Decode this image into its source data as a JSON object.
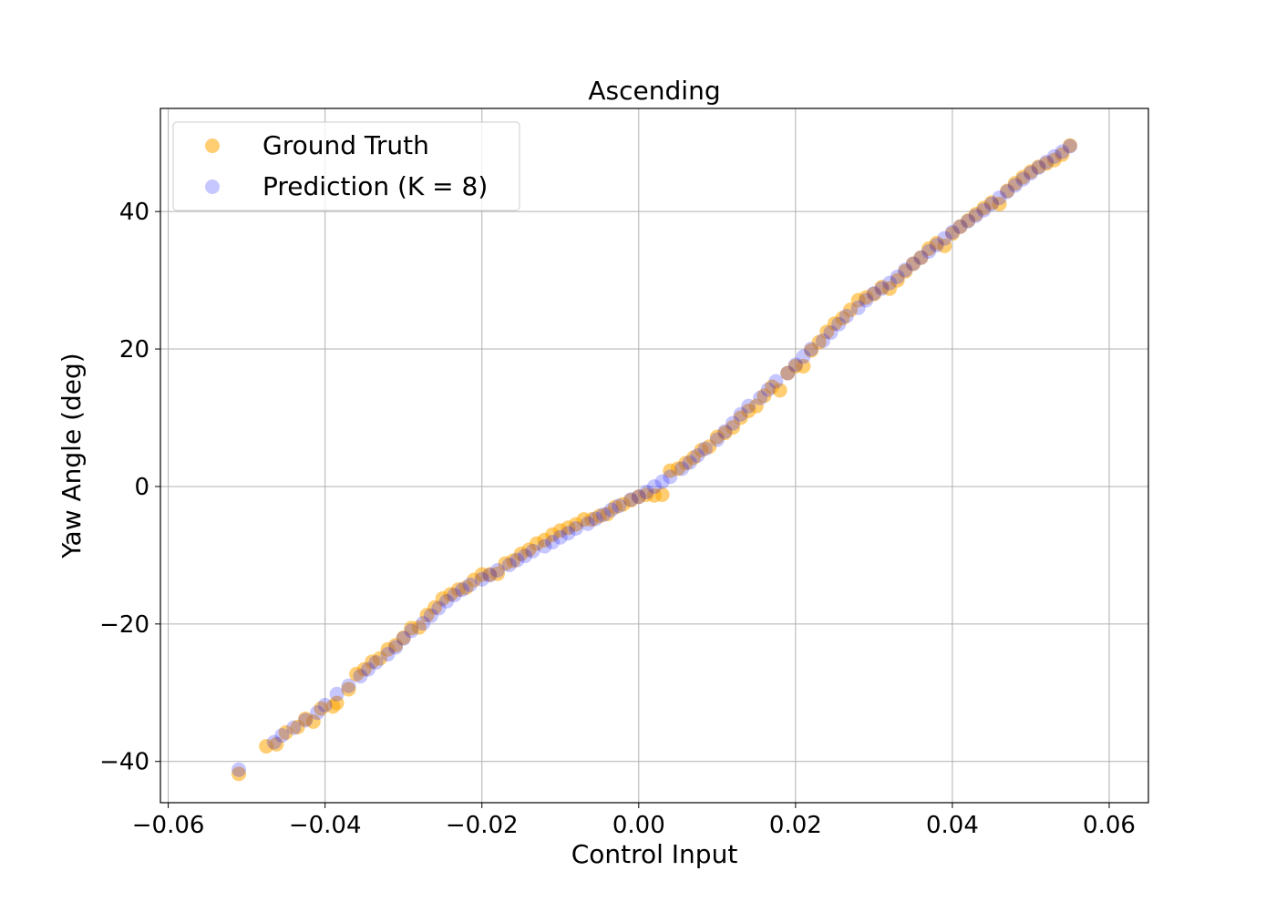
{
  "chart_data": {
    "type": "scatter",
    "title": "Ascending",
    "xlabel": "Control Input",
    "ylabel": "Yaw Angle (deg)",
    "xlim": [
      -0.061,
      0.065
    ],
    "ylim": [
      -46,
      55
    ],
    "xticks": [
      -0.06,
      -0.04,
      -0.02,
      0.0,
      0.02,
      0.04,
      0.06
    ],
    "xtick_labels": [
      "−0.06",
      "−0.04",
      "−0.02",
      "0.00",
      "0.02",
      "0.04",
      "0.06"
    ],
    "yticks": [
      -40,
      -20,
      0,
      20,
      40
    ],
    "ytick_labels": [
      "−40",
      "−20",
      "0",
      "20",
      "40"
    ],
    "grid": true,
    "legend_position": "upper-left",
    "series": [
      {
        "name": "Ground Truth",
        "color": "#FFA500",
        "opacity": 0.55,
        "points": [
          [
            -0.051,
            -41.8
          ],
          [
            -0.0475,
            -37.8
          ],
          [
            -0.0462,
            -37.5
          ],
          [
            -0.045,
            -35.8
          ],
          [
            -0.0435,
            -35.0
          ],
          [
            -0.0425,
            -33.8
          ],
          [
            -0.0415,
            -34.2
          ],
          [
            -0.0405,
            -32.3
          ],
          [
            -0.039,
            -32.0
          ],
          [
            -0.0385,
            -31.5
          ],
          [
            -0.037,
            -29.5
          ],
          [
            -0.036,
            -27.3
          ],
          [
            -0.035,
            -26.6
          ],
          [
            -0.034,
            -25.5
          ],
          [
            -0.033,
            -25.0
          ],
          [
            -0.032,
            -23.7
          ],
          [
            -0.031,
            -23.1
          ],
          [
            -0.03,
            -22.0
          ],
          [
            -0.029,
            -20.6
          ],
          [
            -0.028,
            -20.5
          ],
          [
            -0.027,
            -18.7
          ],
          [
            -0.026,
            -17.6
          ],
          [
            -0.025,
            -16.3
          ],
          [
            -0.024,
            -15.7
          ],
          [
            -0.023,
            -15.0
          ],
          [
            -0.022,
            -14.7
          ],
          [
            -0.021,
            -13.6
          ],
          [
            -0.02,
            -12.8
          ],
          [
            -0.019,
            -12.8
          ],
          [
            -0.018,
            -12.7
          ],
          [
            -0.017,
            -11.2
          ],
          [
            -0.016,
            -10.8
          ],
          [
            -0.015,
            -9.8
          ],
          [
            -0.014,
            -9.2
          ],
          [
            -0.013,
            -8.3
          ],
          [
            -0.012,
            -7.8
          ],
          [
            -0.011,
            -7.0
          ],
          [
            -0.01,
            -6.4
          ],
          [
            -0.009,
            -6.0
          ],
          [
            -0.008,
            -5.5
          ],
          [
            -0.007,
            -4.8
          ],
          [
            -0.006,
            -4.8
          ],
          [
            -0.005,
            -4.3
          ],
          [
            -0.004,
            -4.0
          ],
          [
            -0.003,
            -3.0
          ],
          [
            -0.002,
            -2.6
          ],
          [
            -0.001,
            -2.0
          ],
          [
            0.0,
            -1.5
          ],
          [
            0.001,
            -1.2
          ],
          [
            0.002,
            -1.3
          ],
          [
            0.003,
            -1.2
          ],
          [
            0.004,
            2.3
          ],
          [
            0.005,
            2.6
          ],
          [
            0.006,
            3.4
          ],
          [
            0.007,
            4.2
          ],
          [
            0.008,
            5.3
          ],
          [
            0.009,
            5.8
          ],
          [
            0.01,
            7.2
          ],
          [
            0.011,
            7.8
          ],
          [
            0.012,
            8.6
          ],
          [
            0.013,
            10.0
          ],
          [
            0.014,
            11.0
          ],
          [
            0.015,
            11.7
          ],
          [
            0.016,
            13.2
          ],
          [
            0.017,
            14.5
          ],
          [
            0.018,
            14.0
          ],
          [
            0.019,
            16.5
          ],
          [
            0.02,
            17.5
          ],
          [
            0.021,
            17.5
          ],
          [
            0.022,
            19.8
          ],
          [
            0.023,
            21.0
          ],
          [
            0.024,
            22.5
          ],
          [
            0.025,
            23.7
          ],
          [
            0.026,
            24.5
          ],
          [
            0.027,
            25.7
          ],
          [
            0.028,
            27.1
          ],
          [
            0.029,
            27.5
          ],
          [
            0.03,
            28.0
          ],
          [
            0.031,
            29.0
          ],
          [
            0.032,
            28.8
          ],
          [
            0.033,
            30.0
          ],
          [
            0.034,
            31.3
          ],
          [
            0.035,
            32.4
          ],
          [
            0.036,
            33.3
          ],
          [
            0.037,
            34.6
          ],
          [
            0.038,
            35.4
          ],
          [
            0.039,
            35.0
          ],
          [
            0.04,
            36.8
          ],
          [
            0.041,
            37.8
          ],
          [
            0.042,
            38.7
          ],
          [
            0.043,
            39.6
          ],
          [
            0.044,
            40.5
          ],
          [
            0.045,
            41.3
          ],
          [
            0.046,
            41.1
          ],
          [
            0.047,
            43.0
          ],
          [
            0.048,
            44.1
          ],
          [
            0.049,
            45.0
          ],
          [
            0.05,
            45.8
          ],
          [
            0.051,
            46.5
          ],
          [
            0.052,
            47.0
          ],
          [
            0.053,
            47.5
          ],
          [
            0.054,
            48.3
          ],
          [
            0.055,
            49.6
          ]
        ]
      },
      {
        "name": "Prediction (K = 8)",
        "color": "#0000FF",
        "opacity": 0.22,
        "points": [
          [
            -0.051,
            -41.2
          ],
          [
            -0.0465,
            -37.2
          ],
          [
            -0.0455,
            -36.2
          ],
          [
            -0.044,
            -35.1
          ],
          [
            -0.0425,
            -34.0
          ],
          [
            -0.041,
            -32.9
          ],
          [
            -0.04,
            -31.8
          ],
          [
            -0.0385,
            -30.2
          ],
          [
            -0.037,
            -29.0
          ],
          [
            -0.0355,
            -27.6
          ],
          [
            -0.0345,
            -26.6
          ],
          [
            -0.0335,
            -25.6
          ],
          [
            -0.032,
            -24.4
          ],
          [
            -0.031,
            -23.4
          ],
          [
            -0.03,
            -22.1
          ],
          [
            -0.029,
            -21.0
          ],
          [
            -0.0275,
            -19.9
          ],
          [
            -0.0265,
            -18.8
          ],
          [
            -0.0255,
            -17.7
          ],
          [
            -0.0245,
            -16.7
          ],
          [
            -0.0235,
            -15.8
          ],
          [
            -0.0225,
            -15.0
          ],
          [
            -0.0215,
            -14.3
          ],
          [
            -0.02,
            -13.5
          ],
          [
            -0.019,
            -12.9
          ],
          [
            -0.018,
            -12.2
          ],
          [
            -0.0165,
            -11.4
          ],
          [
            -0.0155,
            -10.7
          ],
          [
            -0.0145,
            -10.1
          ],
          [
            -0.0135,
            -9.4
          ],
          [
            -0.012,
            -8.7
          ],
          [
            -0.011,
            -8.1
          ],
          [
            -0.01,
            -7.4
          ],
          [
            -0.009,
            -6.8
          ],
          [
            -0.008,
            -6.1
          ],
          [
            -0.0065,
            -5.4
          ],
          [
            -0.0055,
            -4.7
          ],
          [
            -0.0045,
            -4.1
          ],
          [
            -0.0035,
            -3.4
          ],
          [
            -0.0025,
            -2.8
          ],
          [
            -0.001,
            -1.9
          ],
          [
            0.0,
            -1.5
          ],
          [
            0.001,
            -0.8
          ],
          [
            0.002,
            0.0
          ],
          [
            0.003,
            0.7
          ],
          [
            0.004,
            1.4
          ],
          [
            0.0055,
            2.6
          ],
          [
            0.0065,
            3.5
          ],
          [
            0.0075,
            4.5
          ],
          [
            0.0085,
            5.5
          ],
          [
            0.01,
            6.8
          ],
          [
            0.011,
            8.0
          ],
          [
            0.012,
            9.2
          ],
          [
            0.013,
            10.5
          ],
          [
            0.014,
            11.7
          ],
          [
            0.0155,
            12.9
          ],
          [
            0.0165,
            14.1
          ],
          [
            0.0175,
            15.3
          ],
          [
            0.019,
            16.5
          ],
          [
            0.02,
            17.7
          ],
          [
            0.021,
            18.9
          ],
          [
            0.022,
            20.0
          ],
          [
            0.0235,
            21.2
          ],
          [
            0.0245,
            22.4
          ],
          [
            0.0255,
            23.6
          ],
          [
            0.0265,
            24.8
          ],
          [
            0.028,
            26.0
          ],
          [
            0.029,
            27.1
          ],
          [
            0.03,
            28.1
          ],
          [
            0.031,
            28.8
          ],
          [
            0.032,
            29.6
          ],
          [
            0.033,
            30.5
          ],
          [
            0.034,
            31.5
          ],
          [
            0.035,
            32.4
          ],
          [
            0.036,
            33.3
          ],
          [
            0.037,
            34.2
          ],
          [
            0.038,
            35.1
          ],
          [
            0.039,
            36.1
          ],
          [
            0.04,
            37.0
          ],
          [
            0.041,
            37.8
          ],
          [
            0.042,
            38.6
          ],
          [
            0.043,
            39.4
          ],
          [
            0.044,
            40.2
          ],
          [
            0.045,
            41.1
          ],
          [
            0.046,
            42.0
          ],
          [
            0.047,
            42.9
          ],
          [
            0.048,
            43.8
          ],
          [
            0.049,
            44.7
          ],
          [
            0.05,
            45.6
          ],
          [
            0.051,
            46.4
          ],
          [
            0.052,
            47.2
          ],
          [
            0.053,
            48.0
          ],
          [
            0.054,
            48.7
          ],
          [
            0.055,
            49.5
          ]
        ]
      }
    ]
  }
}
